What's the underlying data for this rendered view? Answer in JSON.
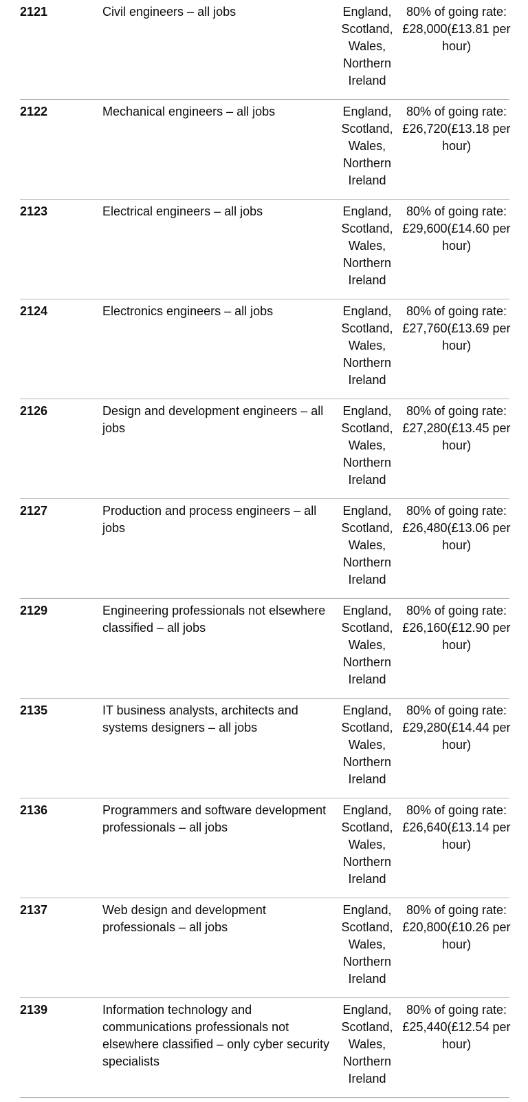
{
  "rows": [
    {
      "code": "2121",
      "occupation": "Civil engineers – all jobs",
      "countries": "England, Scotland, Wales, Northern Ireland",
      "rate": "80% of going rate: £28,000(£13.81 per hour)"
    },
    {
      "code": "2122",
      "occupation": "Mechanical engineers – all jobs",
      "countries": "England, Scotland, Wales, Northern Ireland",
      "rate": "80% of going rate: £26,720(£13.18 per hour)"
    },
    {
      "code": "2123",
      "occupation": "Electrical engineers – all jobs",
      "countries": "England, Scotland, Wales, Northern Ireland",
      "rate": "80% of going rate: £29,600(£14.60 per hour)"
    },
    {
      "code": "2124",
      "occupation": "Electronics engineers – all jobs",
      "countries": "England, Scotland, Wales, Northern Ireland",
      "rate": "80% of going rate: £27,760(£13.69 per hour)"
    },
    {
      "code": "2126",
      "occupation": "Design and development engineers – all jobs",
      "countries": "England, Scotland, Wales, Northern Ireland",
      "rate": "80% of going rate: £27,280(£13.45 per hour)"
    },
    {
      "code": "2127",
      "occupation": "Production and process engineers – all jobs",
      "countries": "England, Scotland, Wales, Northern Ireland",
      "rate": "80% of going rate: £26,480(£13.06 per hour)"
    },
    {
      "code": "2129",
      "occupation": "Engineering professionals not elsewhere classified – all jobs",
      "countries": "England, Scotland, Wales, Northern Ireland",
      "rate": "80% of going rate: £26,160(£12.90 per hour)"
    },
    {
      "code": "2135",
      "occupation": "IT business analysts, architects and systems designers – all jobs",
      "countries": "England, Scotland, Wales, Northern Ireland",
      "rate": "80% of going rate: £29,280(£14.44 per hour)"
    },
    {
      "code": "2136",
      "occupation": "Programmers and software development professionals – all jobs",
      "countries": "England, Scotland, Wales, Northern Ireland",
      "rate": "80% of going rate: £26,640(£13.14 per hour)"
    },
    {
      "code": "2137",
      "occupation": "Web design and development professionals – all jobs",
      "countries": "England, Scotland, Wales, Northern Ireland",
      "rate": "80% of going rate: £20,800(£10.26 per hour)"
    },
    {
      "code": "2139",
      "occupation": "Information technology and communications professionals not elsewhere classified – only cyber security specialists",
      "countries": "England, Scotland, Wales, Northern Ireland",
      "rate": "80% of going rate: £25,440(£12.54 per hour)"
    }
  ]
}
